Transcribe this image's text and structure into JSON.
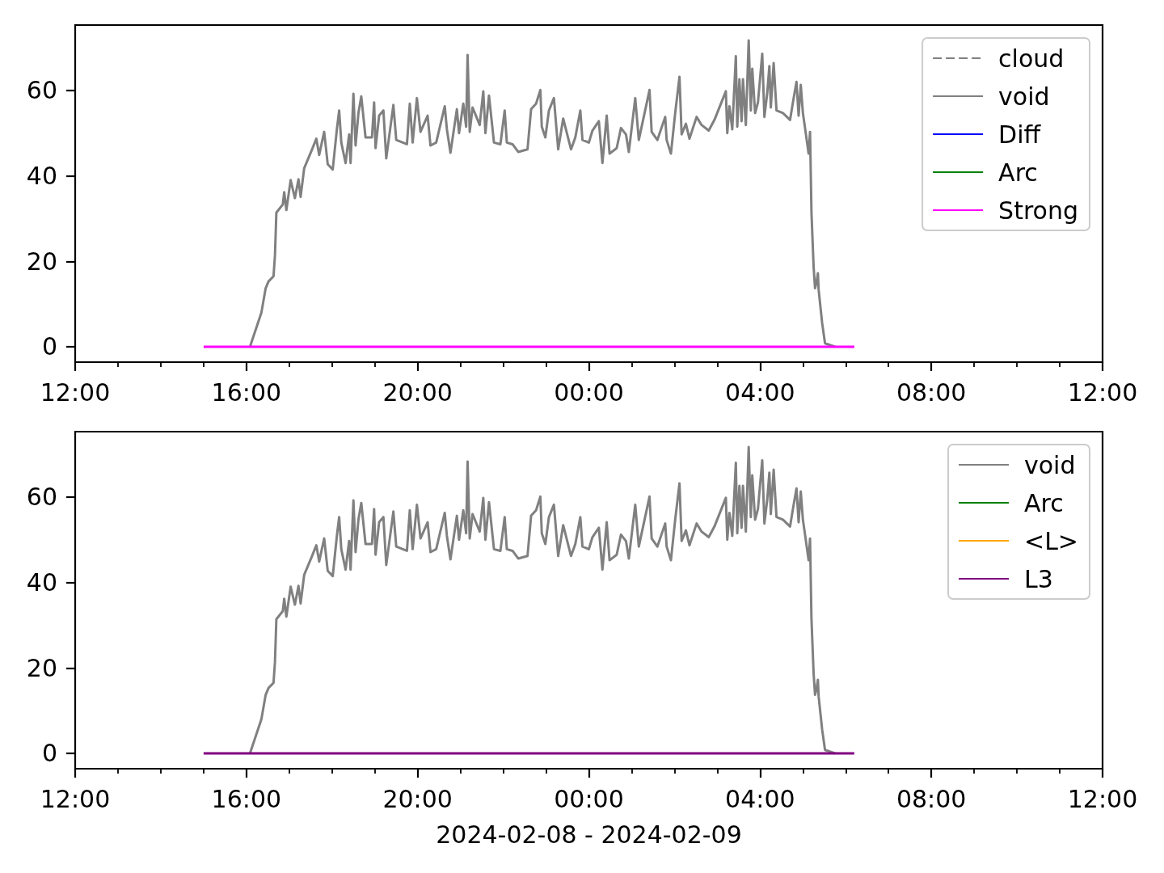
{
  "chart_data": [
    {
      "type": "line",
      "xlim": [
        "2024-02-08T12:00",
        "2024-02-09T12:00"
      ],
      "xticks": [
        {
          "value": "2024-02-08T12:00",
          "label": "12:00"
        },
        {
          "value": "2024-02-08T13:00",
          "label": null
        },
        {
          "value": "2024-02-08T14:00",
          "label": null
        },
        {
          "value": "2024-02-08T15:00",
          "label": null
        },
        {
          "value": "2024-02-08T16:00",
          "label": "16:00"
        },
        {
          "value": "2024-02-08T17:00",
          "label": null
        },
        {
          "value": "2024-02-08T18:00",
          "label": null
        },
        {
          "value": "2024-02-08T19:00",
          "label": null
        },
        {
          "value": "2024-02-08T20:00",
          "label": "20:00"
        },
        {
          "value": "2024-02-08T21:00",
          "label": null
        },
        {
          "value": "2024-02-08T22:00",
          "label": null
        },
        {
          "value": "2024-02-08T23:00",
          "label": null
        },
        {
          "value": "2024-02-09T00:00",
          "label": "00:00"
        },
        {
          "value": "2024-02-09T01:00",
          "label": null
        },
        {
          "value": "2024-02-09T02:00",
          "label": null
        },
        {
          "value": "2024-02-09T03:00",
          "label": null
        },
        {
          "value": "2024-02-09T04:00",
          "label": "04:00"
        },
        {
          "value": "2024-02-09T05:00",
          "label": null
        },
        {
          "value": "2024-02-09T06:00",
          "label": null
        },
        {
          "value": "2024-02-09T07:00",
          "label": null
        },
        {
          "value": "2024-02-09T08:00",
          "label": "08:00"
        },
        {
          "value": "2024-02-09T09:00",
          "label": null
        },
        {
          "value": "2024-02-09T10:00",
          "label": null
        },
        {
          "value": "2024-02-09T11:00",
          "label": null
        },
        {
          "value": "2024-02-09T12:00",
          "label": "12:00"
        }
      ],
      "ylim": [
        -3.6,
        75.3
      ],
      "yticks": [
        0,
        20,
        40,
        60
      ],
      "legend": "top right",
      "marker": "none",
      "series": [
        {
          "name": "cloud",
          "color": "#808080",
          "line_style": "dashed"
        },
        {
          "name": "void",
          "color": "#808080",
          "x": [
            "2024-02-08T16:05",
            "2024-02-08T16:21",
            "2024-02-08T16:27",
            "2024-02-08T16:31",
            "2024-02-08T16:38",
            "2024-02-08T16:40",
            "2024-02-08T16:42",
            "2024-02-08T16:51",
            "2024-02-08T16:53",
            "2024-02-08T16:56",
            "2024-02-08T17:02",
            "2024-02-08T17:08",
            "2024-02-08T17:13",
            "2024-02-08T17:16",
            "2024-02-08T17:21",
            "2024-02-08T17:32",
            "2024-02-08T17:38",
            "2024-02-08T17:42",
            "2024-02-08T17:49",
            "2024-02-08T17:54",
            "2024-02-08T18:01",
            "2024-02-08T18:07",
            "2024-02-08T18:10",
            "2024-02-08T18:13",
            "2024-02-08T18:19",
            "2024-02-08T18:24",
            "2024-02-08T18:26",
            "2024-02-08T18:30",
            "2024-02-08T18:33",
            "2024-02-08T18:37",
            "2024-02-08T18:41",
            "2024-02-08T18:47",
            "2024-02-08T18:56",
            "2024-02-08T18:59",
            "2024-02-08T19:01",
            "2024-02-08T19:06",
            "2024-02-08T19:12",
            "2024-02-08T19:16",
            "2024-02-08T19:26",
            "2024-02-08T19:30",
            "2024-02-08T19:45",
            "2024-02-08T19:49",
            "2024-02-08T19:53",
            "2024-02-08T19:59",
            "2024-02-08T20:04",
            "2024-02-08T20:14",
            "2024-02-08T20:18",
            "2024-02-08T20:26",
            "2024-02-08T20:38",
            "2024-02-08T20:41",
            "2024-02-08T20:46",
            "2024-02-08T20:55",
            "2024-02-08T20:58",
            "2024-02-08T21:04",
            "2024-02-08T21:08",
            "2024-02-08T21:10",
            "2024-02-08T21:13",
            "2024-02-08T21:17",
            "2024-02-08T21:27",
            "2024-02-08T21:32",
            "2024-02-08T21:35",
            "2024-02-08T21:40",
            "2024-02-08T21:47",
            "2024-02-08T21:56",
            "2024-02-08T22:02",
            "2024-02-08T22:05",
            "2024-02-08T22:13",
            "2024-02-08T22:21",
            "2024-02-08T22:34",
            "2024-02-08T22:39",
            "2024-02-08T22:46",
            "2024-02-08T22:52",
            "2024-02-08T22:54",
            "2024-02-08T22:59",
            "2024-02-08T23:04",
            "2024-02-08T23:11",
            "2024-02-08T23:17",
            "2024-02-08T23:24",
            "2024-02-08T23:35",
            "2024-02-08T23:41",
            "2024-02-08T23:48",
            "2024-02-08T23:51",
            "2024-02-09T00:00",
            "2024-02-09T00:05",
            "2024-02-09T00:14",
            "2024-02-09T00:19",
            "2024-02-09T00:25",
            "2024-02-09T00:29",
            "2024-02-09T00:39",
            "2024-02-09T00:45",
            "2024-02-09T00:52",
            "2024-02-09T00:56",
            "2024-02-09T01:05",
            "2024-02-09T01:10",
            "2024-02-09T01:25",
            "2024-02-09T01:28",
            "2024-02-09T01:36",
            "2024-02-09T01:47",
            "2024-02-09T01:49",
            "2024-02-09T01:55",
            "2024-02-09T02:01",
            "2024-02-09T02:07",
            "2024-02-09T02:10",
            "2024-02-09T02:16",
            "2024-02-09T02:21",
            "2024-02-09T02:31",
            "2024-02-09T02:38",
            "2024-02-09T02:48",
            "2024-02-09T02:56",
            "2024-02-09T03:12",
            "2024-02-09T03:14",
            "2024-02-09T03:17",
            "2024-02-09T03:21",
            "2024-02-09T03:26",
            "2024-02-09T03:28",
            "2024-02-09T03:31",
            "2024-02-09T03:34",
            "2024-02-09T03:36",
            "2024-02-09T03:40",
            "2024-02-09T03:44",
            "2024-02-09T03:47",
            "2024-02-09T03:49",
            "2024-02-09T03:53",
            "2024-02-09T03:57",
            "2024-02-09T04:03",
            "2024-02-09T04:06",
            "2024-02-09T04:10",
            "2024-02-09T04:13",
            "2024-02-09T04:15",
            "2024-02-09T04:19",
            "2024-02-09T04:23",
            "2024-02-09T04:32",
            "2024-02-09T04:42",
            "2024-02-09T04:46",
            "2024-02-09T04:51",
            "2024-02-09T04:54",
            "2024-02-09T04:57",
            "2024-02-09T05:00",
            "2024-02-09T05:04",
            "2024-02-09T05:08",
            "2024-02-09T05:10",
            "2024-02-09T05:12",
            "2024-02-09T05:15",
            "2024-02-09T05:17",
            "2024-02-09T05:19",
            "2024-02-09T05:21",
            "2024-02-09T05:22",
            "2024-02-09T05:27",
            "2024-02-09T05:31",
            "2024-02-09T05:45"
          ],
          "values": [
            0,
            8.0,
            13.7,
            15.3,
            16.5,
            21.3,
            31.4,
            33.3,
            36.2,
            32.0,
            39.0,
            34.8,
            39.2,
            35.1,
            41.8,
            46.2,
            48.7,
            44.9,
            50.3,
            42.7,
            41.5,
            51.2,
            55.3,
            47.8,
            43.0,
            49.7,
            43.0,
            59.2,
            47.1,
            54.7,
            58.6,
            49.0,
            49.0,
            57.2,
            46.5,
            54.1,
            55.3,
            44.1,
            56.6,
            48.4,
            47.4,
            56.9,
            47.8,
            58.2,
            50.3,
            54.1,
            47.1,
            47.8,
            56.3,
            50.9,
            45.4,
            55.6,
            50.0,
            56.9,
            51.5,
            68.3,
            50.3,
            56.0,
            51.9,
            59.8,
            50.0,
            58.8,
            47.8,
            47.4,
            55.3,
            47.8,
            47.4,
            45.6,
            46.2,
            55.6,
            56.9,
            60.1,
            51.5,
            49.0,
            55.3,
            58.2,
            46.2,
            53.4,
            46.2,
            49.0,
            55.3,
            48.4,
            47.8,
            50.6,
            52.8,
            43.0,
            54.1,
            45.2,
            46.5,
            51.2,
            49.7,
            45.6,
            58.2,
            48.4,
            60.1,
            50.3,
            48.4,
            53.8,
            48.4,
            45.2,
            54.7,
            63.2,
            49.7,
            52.2,
            48.7,
            53.8,
            51.9,
            50.6,
            53.1,
            59.8,
            50.0,
            56.3,
            50.9,
            68.0,
            51.5,
            62.6,
            52.8,
            62.6,
            51.9,
            71.7,
            55.3,
            65.1,
            54.7,
            57.2,
            68.6,
            53.8,
            59.4,
            65.7,
            56.0,
            66.4,
            55.3,
            54.7,
            53.1,
            57.2,
            62.0,
            54.1,
            61.3,
            54.7,
            50.0,
            45.2,
            50.3,
            31.4,
            18.7,
            13.7,
            15.0,
            17.2,
            13.4,
            5.5,
            0.8,
            0
          ]
        },
        {
          "name": "Diff",
          "color": "#0000ff"
        },
        {
          "name": "Arc",
          "color": "#008000"
        },
        {
          "name": "Strong",
          "color": "#ff00ff",
          "x": [
            "2024-02-08T15:00",
            "2024-02-09T06:12"
          ],
          "values": [
            0,
            0
          ]
        }
      ]
    },
    {
      "type": "line",
      "xlabel": "2024-02-08 - 2024-02-09",
      "xlim": [
        "2024-02-08T12:00",
        "2024-02-09T12:00"
      ],
      "xticks": [
        {
          "value": "2024-02-08T12:00",
          "label": "12:00"
        },
        {
          "value": "2024-02-08T13:00",
          "label": null
        },
        {
          "value": "2024-02-08T14:00",
          "label": null
        },
        {
          "value": "2024-02-08T15:00",
          "label": null
        },
        {
          "value": "2024-02-08T16:00",
          "label": "16:00"
        },
        {
          "value": "2024-02-08T17:00",
          "label": null
        },
        {
          "value": "2024-02-08T18:00",
          "label": null
        },
        {
          "value": "2024-02-08T19:00",
          "label": null
        },
        {
          "value": "2024-02-08T20:00",
          "label": "20:00"
        },
        {
          "value": "2024-02-08T21:00",
          "label": null
        },
        {
          "value": "2024-02-08T22:00",
          "label": null
        },
        {
          "value": "2024-02-08T23:00",
          "label": null
        },
        {
          "value": "2024-02-09T00:00",
          "label": "00:00"
        },
        {
          "value": "2024-02-09T01:00",
          "label": null
        },
        {
          "value": "2024-02-09T02:00",
          "label": null
        },
        {
          "value": "2024-02-09T03:00",
          "label": null
        },
        {
          "value": "2024-02-09T04:00",
          "label": "04:00"
        },
        {
          "value": "2024-02-09T05:00",
          "label": null
        },
        {
          "value": "2024-02-09T06:00",
          "label": null
        },
        {
          "value": "2024-02-09T07:00",
          "label": null
        },
        {
          "value": "2024-02-09T08:00",
          "label": "08:00"
        },
        {
          "value": "2024-02-09T09:00",
          "label": null
        },
        {
          "value": "2024-02-09T10:00",
          "label": null
        },
        {
          "value": "2024-02-09T11:00",
          "label": null
        },
        {
          "value": "2024-02-09T12:00",
          "label": "12:00"
        }
      ],
      "ylim": [
        -3.6,
        75.3
      ],
      "yticks": [
        0,
        20,
        40,
        60
      ],
      "legend": "top right",
      "marker": "none",
      "series": [
        {
          "name": "void",
          "color": "#808080",
          "x": [
            "2024-02-08T16:05",
            "2024-02-08T16:21",
            "2024-02-08T16:27",
            "2024-02-08T16:31",
            "2024-02-08T16:38",
            "2024-02-08T16:40",
            "2024-02-08T16:42",
            "2024-02-08T16:51",
            "2024-02-08T16:53",
            "2024-02-08T16:56",
            "2024-02-08T17:02",
            "2024-02-08T17:08",
            "2024-02-08T17:13",
            "2024-02-08T17:16",
            "2024-02-08T17:21",
            "2024-02-08T17:32",
            "2024-02-08T17:38",
            "2024-02-08T17:42",
            "2024-02-08T17:49",
            "2024-02-08T17:54",
            "2024-02-08T18:01",
            "2024-02-08T18:07",
            "2024-02-08T18:10",
            "2024-02-08T18:13",
            "2024-02-08T18:19",
            "2024-02-08T18:24",
            "2024-02-08T18:26",
            "2024-02-08T18:30",
            "2024-02-08T18:33",
            "2024-02-08T18:37",
            "2024-02-08T18:41",
            "2024-02-08T18:47",
            "2024-02-08T18:56",
            "2024-02-08T18:59",
            "2024-02-08T19:01",
            "2024-02-08T19:06",
            "2024-02-08T19:12",
            "2024-02-08T19:16",
            "2024-02-08T19:26",
            "2024-02-08T19:30",
            "2024-02-08T19:45",
            "2024-02-08T19:49",
            "2024-02-08T19:53",
            "2024-02-08T19:59",
            "2024-02-08T20:04",
            "2024-02-08T20:14",
            "2024-02-08T20:18",
            "2024-02-08T20:26",
            "2024-02-08T20:38",
            "2024-02-08T20:41",
            "2024-02-08T20:46",
            "2024-02-08T20:55",
            "2024-02-08T20:58",
            "2024-02-08T21:04",
            "2024-02-08T21:08",
            "2024-02-08T21:10",
            "2024-02-08T21:13",
            "2024-02-08T21:17",
            "2024-02-08T21:27",
            "2024-02-08T21:32",
            "2024-02-08T21:35",
            "2024-02-08T21:40",
            "2024-02-08T21:47",
            "2024-02-08T21:56",
            "2024-02-08T22:02",
            "2024-02-08T22:05",
            "2024-02-08T22:13",
            "2024-02-08T22:21",
            "2024-02-08T22:34",
            "2024-02-08T22:39",
            "2024-02-08T22:46",
            "2024-02-08T22:52",
            "2024-02-08T22:54",
            "2024-02-08T22:59",
            "2024-02-08T23:04",
            "2024-02-08T23:11",
            "2024-02-08T23:17",
            "2024-02-08T23:24",
            "2024-02-08T23:35",
            "2024-02-08T23:41",
            "2024-02-08T23:48",
            "2024-02-08T23:51",
            "2024-02-09T00:00",
            "2024-02-09T00:05",
            "2024-02-09T00:14",
            "2024-02-09T00:19",
            "2024-02-09T00:25",
            "2024-02-09T00:29",
            "2024-02-09T00:39",
            "2024-02-09T00:45",
            "2024-02-09T00:52",
            "2024-02-09T00:56",
            "2024-02-09T01:05",
            "2024-02-09T01:10",
            "2024-02-09T01:25",
            "2024-02-09T01:28",
            "2024-02-09T01:36",
            "2024-02-09T01:47",
            "2024-02-09T01:49",
            "2024-02-09T01:55",
            "2024-02-09T02:01",
            "2024-02-09T02:07",
            "2024-02-09T02:10",
            "2024-02-09T02:16",
            "2024-02-09T02:21",
            "2024-02-09T02:31",
            "2024-02-09T02:38",
            "2024-02-09T02:48",
            "2024-02-09T02:56",
            "2024-02-09T03:12",
            "2024-02-09T03:14",
            "2024-02-09T03:17",
            "2024-02-09T03:21",
            "2024-02-09T03:26",
            "2024-02-09T03:28",
            "2024-02-09T03:31",
            "2024-02-09T03:34",
            "2024-02-09T03:36",
            "2024-02-09T03:40",
            "2024-02-09T03:44",
            "2024-02-09T03:47",
            "2024-02-09T03:49",
            "2024-02-09T03:53",
            "2024-02-09T03:57",
            "2024-02-09T04:03",
            "2024-02-09T04:06",
            "2024-02-09T04:10",
            "2024-02-09T04:13",
            "2024-02-09T04:15",
            "2024-02-09T04:19",
            "2024-02-09T04:23",
            "2024-02-09T04:32",
            "2024-02-09T04:42",
            "2024-02-09T04:46",
            "2024-02-09T04:51",
            "2024-02-09T04:54",
            "2024-02-09T04:57",
            "2024-02-09T05:00",
            "2024-02-09T05:04",
            "2024-02-09T05:08",
            "2024-02-09T05:10",
            "2024-02-09T05:12",
            "2024-02-09T05:15",
            "2024-02-09T05:17",
            "2024-02-09T05:19",
            "2024-02-09T05:21",
            "2024-02-09T05:22",
            "2024-02-09T05:27",
            "2024-02-09T05:31",
            "2024-02-09T05:45"
          ],
          "values": [
            0,
            8.0,
            13.7,
            15.3,
            16.5,
            21.3,
            31.4,
            33.3,
            36.2,
            32.0,
            39.0,
            34.8,
            39.2,
            35.1,
            41.8,
            46.2,
            48.7,
            44.9,
            50.3,
            42.7,
            41.5,
            51.2,
            55.3,
            47.8,
            43.0,
            49.7,
            43.0,
            59.2,
            47.1,
            54.7,
            58.6,
            49.0,
            49.0,
            57.2,
            46.5,
            54.1,
            55.3,
            44.1,
            56.6,
            48.4,
            47.4,
            56.9,
            47.8,
            58.2,
            50.3,
            54.1,
            47.1,
            47.8,
            56.3,
            50.9,
            45.4,
            55.6,
            50.0,
            56.9,
            51.5,
            68.3,
            50.3,
            56.0,
            51.9,
            59.8,
            50.0,
            58.8,
            47.8,
            47.4,
            55.3,
            47.8,
            47.4,
            45.6,
            46.2,
            55.6,
            56.9,
            60.1,
            51.5,
            49.0,
            55.3,
            58.2,
            46.2,
            53.4,
            46.2,
            49.0,
            55.3,
            48.4,
            47.8,
            50.6,
            52.8,
            43.0,
            54.1,
            45.2,
            46.5,
            51.2,
            49.7,
            45.6,
            58.2,
            48.4,
            60.1,
            50.3,
            48.4,
            53.8,
            48.4,
            45.2,
            54.7,
            63.2,
            49.7,
            52.2,
            48.7,
            53.8,
            51.9,
            50.6,
            53.1,
            59.8,
            50.0,
            56.3,
            50.9,
            68.0,
            51.5,
            62.6,
            52.8,
            62.6,
            51.9,
            71.7,
            55.3,
            65.1,
            54.7,
            57.2,
            68.6,
            53.8,
            59.4,
            65.7,
            56.0,
            66.4,
            55.3,
            54.7,
            53.1,
            57.2,
            62.0,
            54.1,
            61.3,
            54.7,
            50.0,
            45.2,
            50.3,
            31.4,
            18.7,
            13.7,
            15.0,
            17.2,
            13.4,
            5.5,
            0.8,
            0
          ]
        },
        {
          "name": "Arc",
          "color": "#008000"
        },
        {
          "name": "<L>",
          "color": "#ffa500"
        },
        {
          "name": "L3",
          "color": "#800080",
          "x": [
            "2024-02-08T15:00",
            "2024-02-09T06:12"
          ],
          "values": [
            0,
            0
          ]
        }
      ]
    }
  ]
}
